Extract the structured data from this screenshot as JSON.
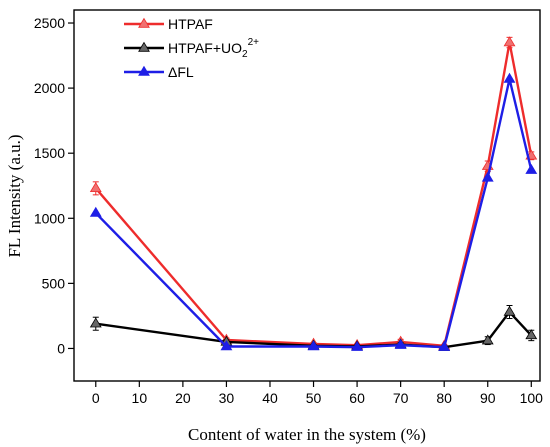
{
  "chart_data": {
    "type": "line",
    "xlabel": "Content of water in the system (%)",
    "ylabel": "FL Intensity (a.u.)",
    "xlim": [
      -5,
      102
    ],
    "ylim": [
      -250,
      2600
    ],
    "x_ticks": [
      0,
      10,
      20,
      30,
      40,
      50,
      60,
      70,
      80,
      90,
      100
    ],
    "y_ticks": [
      0,
      500,
      1000,
      1500,
      2000,
      2500
    ],
    "x": [
      0,
      30,
      50,
      60,
      70,
      80,
      90,
      95,
      100
    ],
    "legend_position": "top-left",
    "series": [
      {
        "name": "HTPAF",
        "color": "#ee2c2c",
        "marker_color": "#f07070",
        "values": [
          1230,
          65,
          35,
          25,
          50,
          20,
          1400,
          2350,
          1480
        ],
        "errors": [
          50,
          15,
          10,
          10,
          20,
          10,
          40,
          40,
          30
        ]
      },
      {
        "name": "HTPAF+UO2 2+",
        "name_base": "HTPAF+UO",
        "name_sub": "2",
        "name_sup": "2+",
        "color": "#000000",
        "marker_color": "#666666",
        "values": [
          190,
          50,
          20,
          15,
          30,
          10,
          60,
          280,
          100
        ],
        "errors": [
          50,
          15,
          10,
          10,
          15,
          10,
          30,
          50,
          40
        ]
      },
      {
        "name": "ΔFL",
        "color": "#1e1ee6",
        "marker_color": "#1e1ee6",
        "values": [
          1040,
          15,
          15,
          10,
          25,
          10,
          1310,
          2070,
          1370
        ],
        "errors": [
          0,
          0,
          0,
          0,
          0,
          0,
          0,
          0,
          0
        ]
      }
    ]
  }
}
